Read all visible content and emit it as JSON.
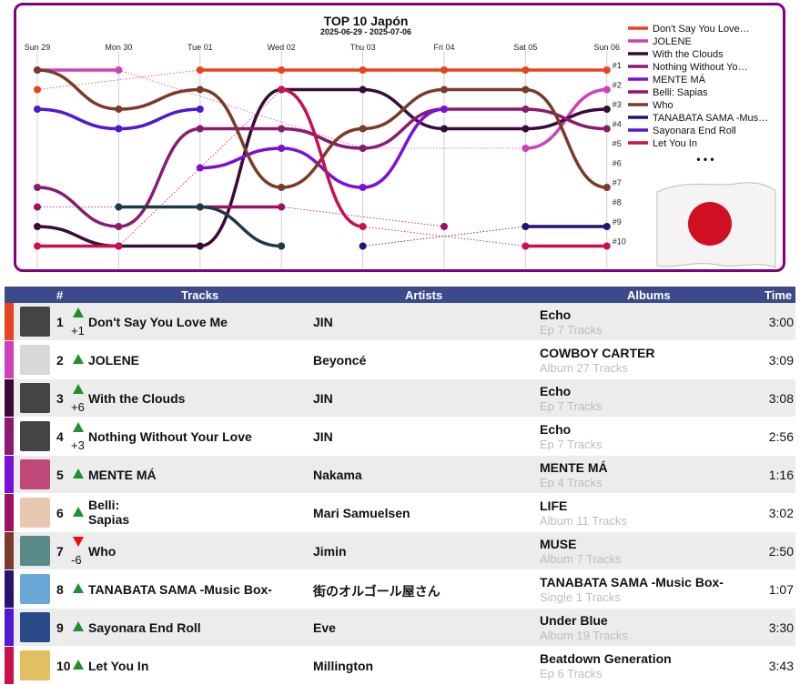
{
  "chart_data": {
    "type": "line",
    "title": "TOP 10 Japón",
    "subtitle": "2025-06-29 - 2025-07-06",
    "x": [
      "Sun 29",
      "Mon 30",
      "Tue 01",
      "Wed 02",
      "Thu 03",
      "Fri 04",
      "Sat 05",
      "Sun 06"
    ],
    "rank_labels": [
      "#1",
      "#2",
      "#3",
      "#4",
      "#5",
      "#6",
      "#7",
      "#8",
      "#9",
      "#10"
    ],
    "y_direction": "rank, 1 at top",
    "ylim": [
      1,
      10
    ],
    "legend_position": "right",
    "legend_more": "• • •",
    "series": [
      {
        "name": "Don't Say You Love Me",
        "color": "#e8431e",
        "values": [
          2,
          null,
          1,
          1,
          1,
          1,
          1,
          1
        ]
      },
      {
        "name": "JOLENE",
        "color": "#d040b8",
        "values": [
          1,
          1,
          null,
          null,
          5,
          null,
          5,
          2
        ]
      },
      {
        "name": "With the Clouds",
        "color": "#3a0a3a",
        "values": [
          9,
          10,
          10,
          2,
          2,
          4,
          4,
          3
        ]
      },
      {
        "name": "Nothing Without Your Love",
        "color": "#8b1a70",
        "values": [
          7,
          9,
          4,
          4,
          5,
          3,
          3,
          4
        ]
      },
      {
        "name": "MENTE MÁ",
        "color": "#7a10d8",
        "values": [
          null,
          null,
          6,
          5,
          7,
          3,
          null,
          null
        ]
      },
      {
        "name": "Belli: Sapias",
        "color": "#a01060",
        "values": [
          8,
          null,
          8,
          8,
          null,
          9,
          null,
          null
        ]
      },
      {
        "name": "Who",
        "color": "#7b3a2a",
        "values": [
          1,
          3,
          2,
          7,
          4,
          2,
          2,
          7
        ]
      },
      {
        "name": "TANABATA SAMA -Music Box-",
        "color": "#2a1070",
        "values": [
          null,
          null,
          null,
          null,
          10,
          null,
          9,
          9
        ]
      },
      {
        "name": "Sayonara End Roll",
        "color": "#5018d0",
        "values": [
          3,
          4,
          3,
          null,
          null,
          null,
          null,
          null
        ]
      },
      {
        "name": "Let You In",
        "color": "#c8104a",
        "values": [
          10,
          10,
          null,
          2,
          9,
          null,
          10,
          10
        ]
      },
      {
        "name": "",
        "color": "#1e3a46",
        "values": [
          null,
          8,
          8,
          10,
          null,
          null,
          null,
          null
        ]
      }
    ]
  },
  "table": {
    "headers": {
      "num": "#",
      "tracks": "Tracks",
      "artists": "Artists",
      "albums": "Albums",
      "time": "Time"
    },
    "rows": [
      {
        "rank": "1",
        "dir": "up",
        "change": "+1",
        "track": "Don't Say You Love Me",
        "artist": "JIN",
        "album": "Echo",
        "album_sub": "Ep 7 Tracks",
        "time": "3:00",
        "color": "#e8431e",
        "thumb": "#444"
      },
      {
        "rank": "2",
        "dir": "up",
        "change": "",
        "track": "JOLENE",
        "artist": "Beyoncé",
        "album": "COWBOY CARTER",
        "album_sub": "Album 27 Tracks",
        "time": "3:09",
        "color": "#d040b8",
        "thumb": "#d8d8d8"
      },
      {
        "rank": "3",
        "dir": "up",
        "change": "+6",
        "track": "With the Clouds",
        "artist": "JIN",
        "album": "Echo",
        "album_sub": "Ep 7 Tracks",
        "time": "3:08",
        "color": "#3a0a3a",
        "thumb": "#444"
      },
      {
        "rank": "4",
        "dir": "up",
        "change": "+3",
        "track": "Nothing Without Your Love",
        "artist": "JIN",
        "album": "Echo",
        "album_sub": "Ep 7 Tracks",
        "time": "2:56",
        "color": "#8b1a70",
        "thumb": "#444"
      },
      {
        "rank": "5",
        "dir": "up",
        "change": "",
        "track": "MENTE MÁ",
        "artist": "Nakama",
        "album": "MENTE MÁ",
        "album_sub": "Ep 4 Tracks",
        "time": "1:16",
        "color": "#7a10d8",
        "thumb": "#c04878"
      },
      {
        "rank": "6",
        "dir": "up",
        "change": "",
        "track": "Belli:\nSapias",
        "artist": "Mari Samuelsen",
        "album": "LIFE",
        "album_sub": "Album 11 Tracks",
        "time": "3:02",
        "color": "#a01060",
        "thumb": "#e8c8b0"
      },
      {
        "rank": "7",
        "dir": "down",
        "change": "-6",
        "track": "Who",
        "artist": "Jimin",
        "album": "MUSE",
        "album_sub": "Album 7 Tracks",
        "time": "2:50",
        "color": "#7b3a2a",
        "thumb": "#5a8a88"
      },
      {
        "rank": "8",
        "dir": "up",
        "change": "",
        "track": "TANABATA SAMA -Music Box-",
        "artist": "街のオルゴール屋さん",
        "album": "TANABATA SAMA -Music Box-",
        "album_sub": "Single 1 Tracks",
        "time": "1:07",
        "color": "#2a1070",
        "thumb": "#6aa8d8"
      },
      {
        "rank": "9",
        "dir": "up",
        "change": "",
        "track": "Sayonara End Roll",
        "artist": "Eve",
        "album": "Under Blue",
        "album_sub": "Album 19 Tracks",
        "time": "3:30",
        "color": "#5018d0",
        "thumb": "#2a4a8a"
      },
      {
        "rank": "10",
        "dir": "up",
        "change": "",
        "track": "Let You In",
        "artist": "Millington",
        "album": "Beatdown Generation",
        "album_sub": "Ep 6 Tracks",
        "time": "3:43",
        "color": "#c8104a",
        "thumb": "#e0c060"
      }
    ]
  }
}
